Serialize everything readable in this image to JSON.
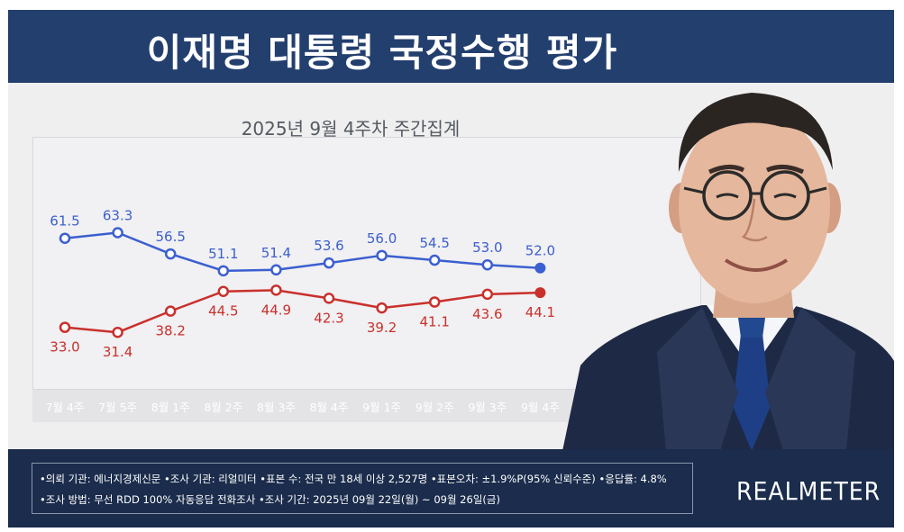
{
  "title": "이재명 대통령 국정수행 평가",
  "subtitle": "2025년 9월 4주차 주간집계",
  "chart_data": {
    "type": "line",
    "categories": [
      "7월 4주",
      "7월 5주",
      "8월 1주",
      "8월 2주",
      "8월 3주",
      "8월 4주",
      "9월 1주",
      "9월 2주",
      "9월 3주",
      "9월 4주"
    ],
    "series": [
      {
        "color": "#3b5fd0",
        "values": [
          61.5,
          63.3,
          56.5,
          51.1,
          51.4,
          53.6,
          56.0,
          54.5,
          53.0,
          52.0
        ],
        "labels": [
          "61.5",
          "63.3",
          "56.5",
          "51.1",
          "51.4",
          "53.6",
          "56.0",
          "54.5",
          "53.0",
          "52.0"
        ]
      },
      {
        "color": "#c9302c",
        "values": [
          33.0,
          31.4,
          38.2,
          44.5,
          44.9,
          42.3,
          39.2,
          41.1,
          43.6,
          44.1
        ],
        "labels": [
          "33.0",
          "31.4",
          "38.2",
          "44.5",
          "44.9",
          "42.3",
          "39.2",
          "41.1",
          "43.6",
          "44.1"
        ]
      }
    ],
    "grid": false,
    "legend": "none"
  },
  "notes": {
    "line1": "•의뢰 기관: 에너지경제신문  •조사 기관: 리얼미터  •표본 수: 전국 만 18세 이상 2,527명  •표본오차: ±1.9%P(95% 신뢰수준)  •응답률: 4.8%",
    "line2": "•조사 방법: 무선 RDD 100% 자동응답 전화조사  •조사 기간: 2025년 09월 22일(월) ~ 09월 26일(금)"
  },
  "logo": "REALMETER",
  "icons": {
    "photo": "president-portrait"
  }
}
